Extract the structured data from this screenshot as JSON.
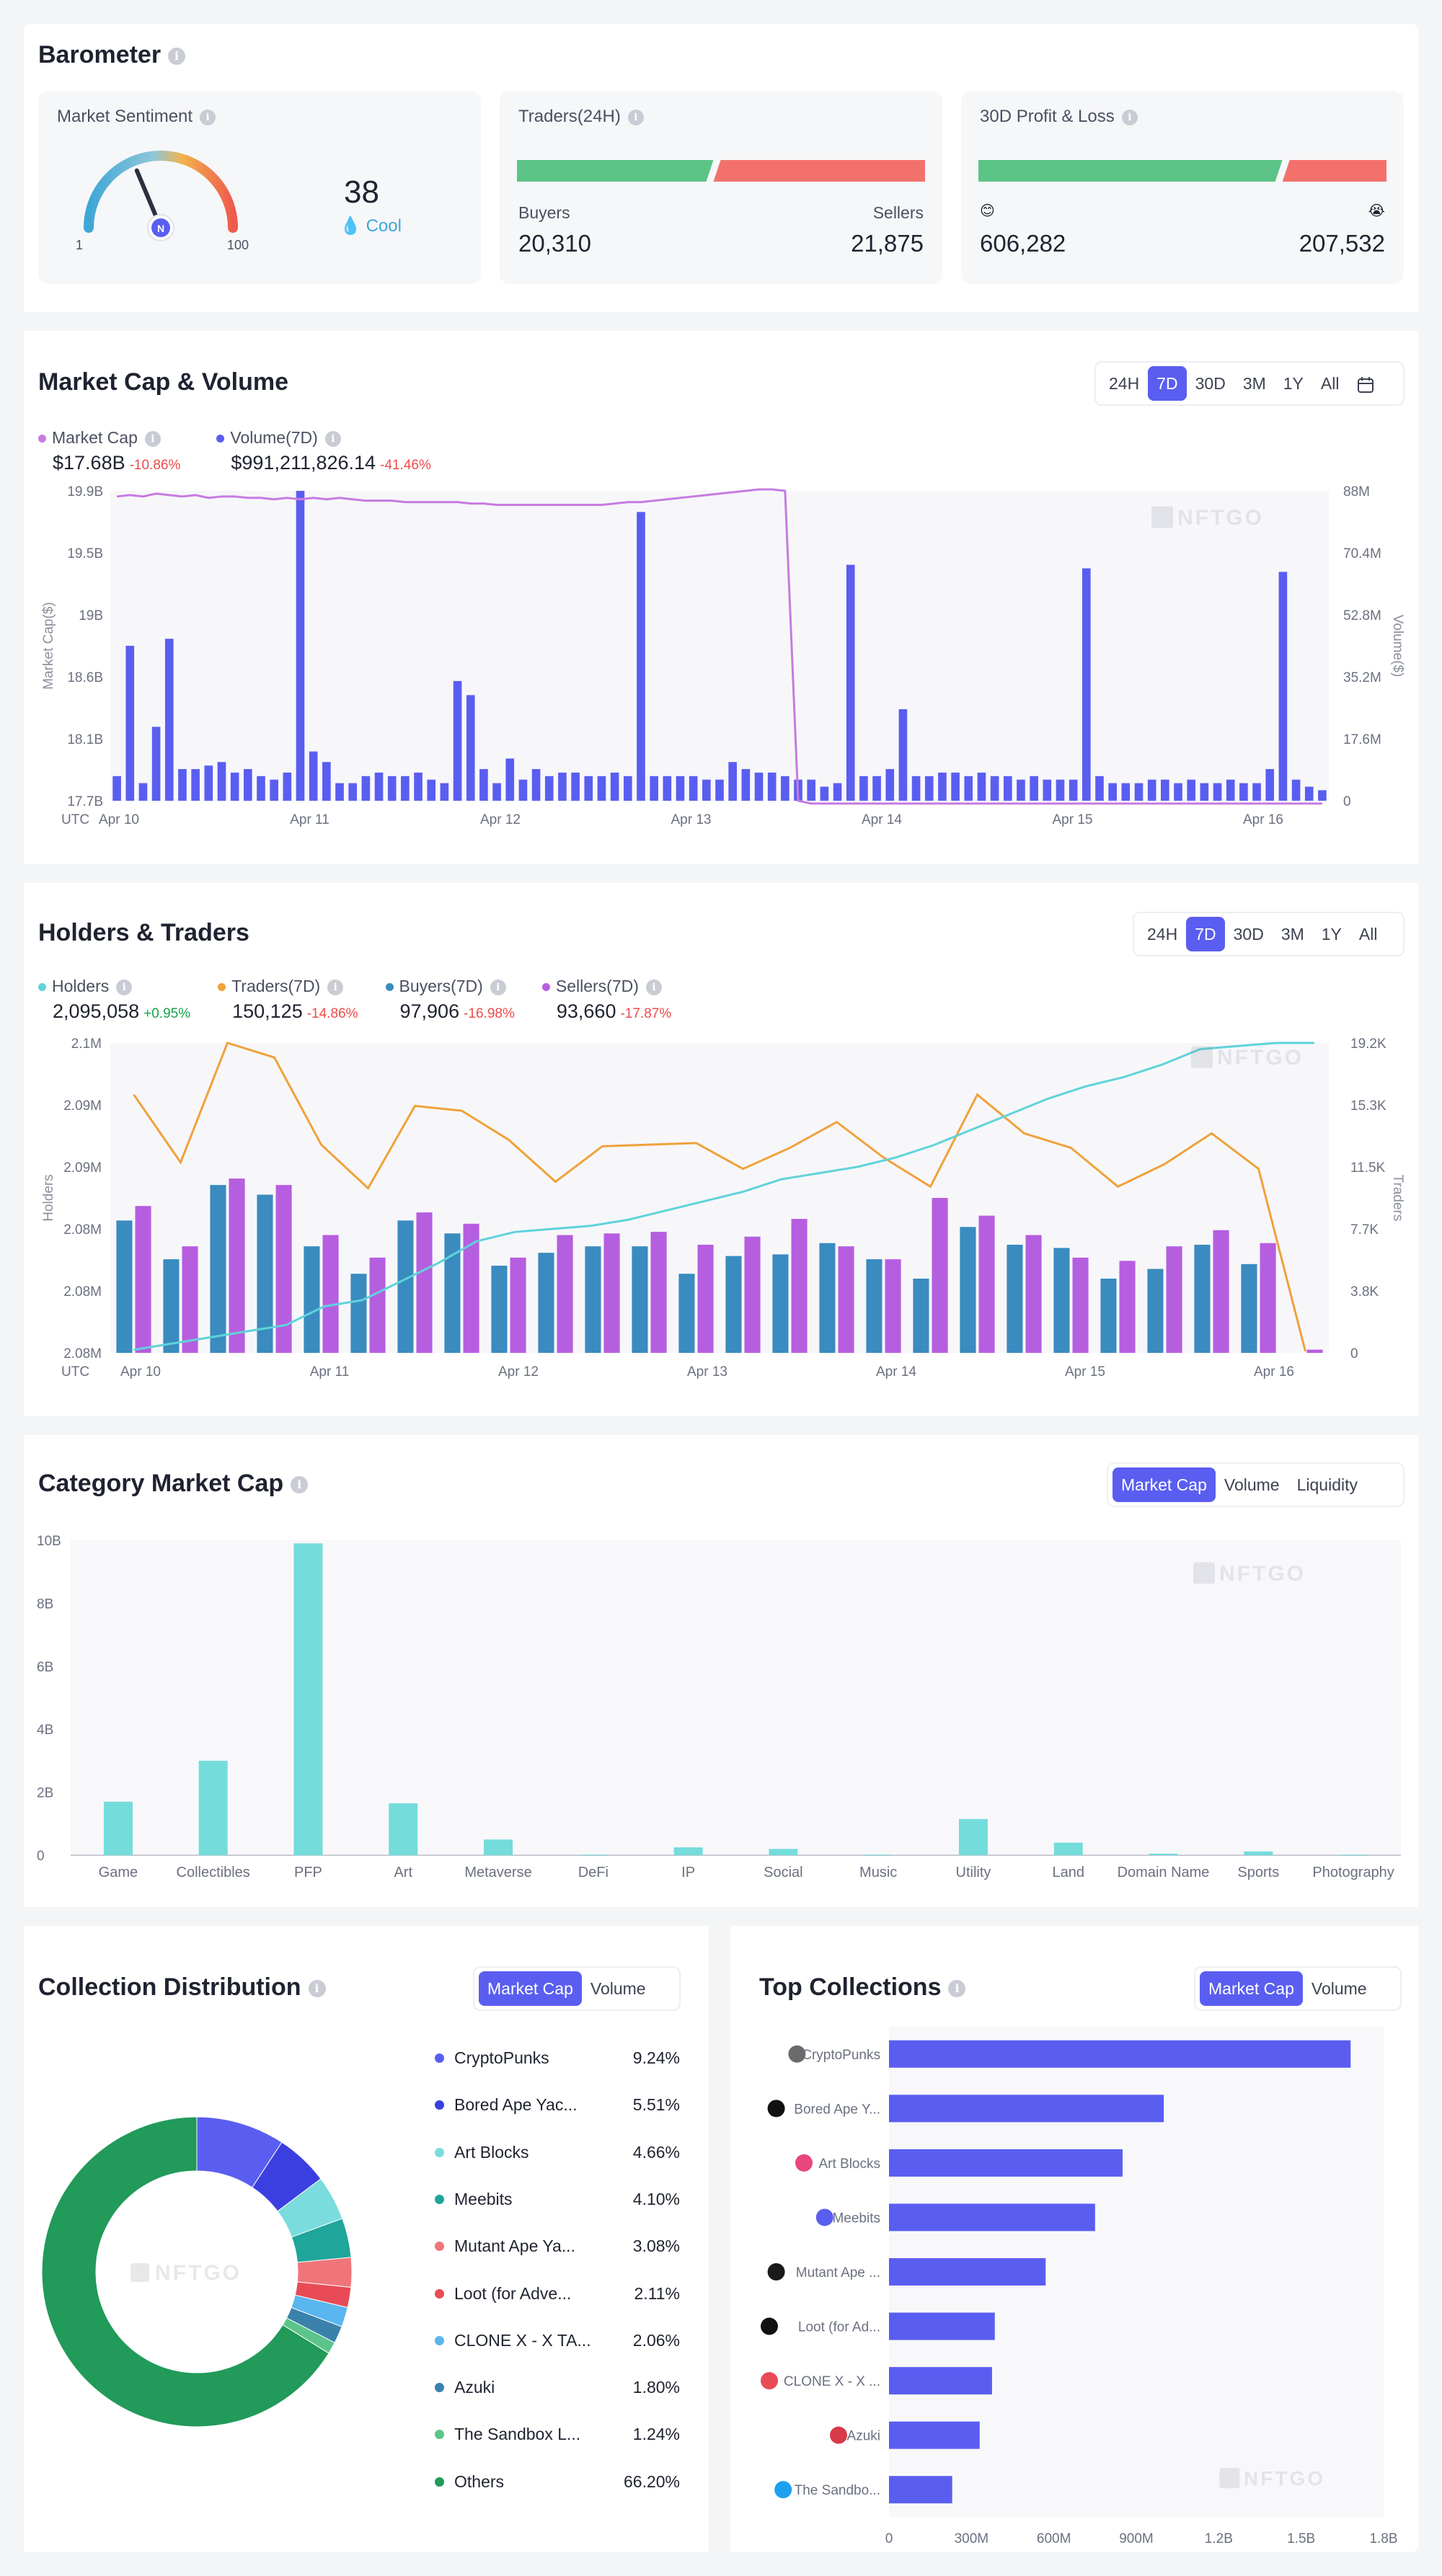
{
  "barometer": {
    "title": "Barometer",
    "sentiment": {
      "label": "Market Sentiment",
      "value": "38",
      "status": "Cool",
      "min": "1",
      "max": "100",
      "gauge_value": 38
    },
    "traders": {
      "label": "Traders(24H)",
      "buyers_label": "Buyers",
      "sellers_label": "Sellers",
      "buyers": "20,310",
      "sellers": "21,875",
      "buyers_share": 0.4815
    },
    "pnl": {
      "label": "30D Profit & Loss",
      "profit_icon": "😊",
      "loss_icon": "😭",
      "profit": "606,282",
      "loss": "207,532",
      "profit_share": 0.745
    },
    "colors": {
      "green": "#5cc487",
      "red": "#f2726b"
    }
  },
  "market_cap": {
    "title": "Market Cap & Volume",
    "tabs": [
      "24H",
      "7D",
      "30D",
      "3M",
      "1Y",
      "All"
    ],
    "active_tab": "7D",
    "calendar_icon": "calendar-icon",
    "legend": [
      {
        "name": "Market Cap",
        "value": "$17.68B",
        "change": "-10.86%",
        "color": "#c77be0"
      },
      {
        "name": "Volume(7D)",
        "value": "$991,211,826.14",
        "change": "-41.46%",
        "color": "#5a5ef0"
      }
    ],
    "watermark": "NFTGO"
  },
  "holders": {
    "title": "Holders & Traders",
    "tabs": [
      "24H",
      "7D",
      "30D",
      "3M",
      "1Y",
      "All"
    ],
    "active_tab": "7D",
    "legend": [
      {
        "name": "Holders",
        "value": "2,095,058",
        "change": "+0.95%",
        "positive": true,
        "color": "#5fd3da"
      },
      {
        "name": "Traders(7D)",
        "value": "150,125",
        "change": "-14.86%",
        "positive": false,
        "color": "#f0a13a"
      },
      {
        "name": "Buyers(7D)",
        "value": "97,906",
        "change": "-16.98%",
        "positive": false,
        "color": "#3a8bbf"
      },
      {
        "name": "Sellers(7D)",
        "value": "93,660",
        "change": "-17.87%",
        "positive": false,
        "color": "#b65ee0"
      }
    ],
    "watermark": "NFTGO"
  },
  "category": {
    "title": "Category Market Cap",
    "tabs": [
      "Market Cap",
      "Volume",
      "Liquidity"
    ],
    "active_tab": "Market Cap",
    "watermark": "NFTGO"
  },
  "distribution": {
    "title": "Collection Distribution",
    "tabs": [
      "Market Cap",
      "Volume"
    ],
    "active_tab": "Market Cap",
    "center_label": "NFTGO",
    "items": [
      {
        "name": "CryptoPunks",
        "pct": "9.24%",
        "value": 9.24,
        "color": "#5a5ef0"
      },
      {
        "name": "Bored Ape Yac...",
        "pct": "5.51%",
        "value": 5.51,
        "color": "#3c3fe0"
      },
      {
        "name": "Art Blocks",
        "pct": "4.66%",
        "value": 4.66,
        "color": "#7adcdc"
      },
      {
        "name": "Meebits",
        "pct": "4.10%",
        "value": 4.1,
        "color": "#1fa59a"
      },
      {
        "name": "Mutant Ape Ya...",
        "pct": "3.08%",
        "value": 3.08,
        "color": "#f0757a"
      },
      {
        "name": "Loot (for Adve...",
        "pct": "2.11%",
        "value": 2.11,
        "color": "#e84b55"
      },
      {
        "name": "CLONE X - X TA...",
        "pct": "2.06%",
        "value": 2.06,
        "color": "#5ab6ee"
      },
      {
        "name": "Azuki",
        "pct": "1.80%",
        "value": 1.8,
        "color": "#3a82ac"
      },
      {
        "name": "The Sandbox L...",
        "pct": "1.24%",
        "value": 1.24,
        "color": "#5cc48a"
      },
      {
        "name": "Others",
        "pct": "66.20%",
        "value": 66.2,
        "color": "#219a5a"
      }
    ]
  },
  "top": {
    "title": "Top Collections",
    "tabs": [
      "Market Cap",
      "Volume"
    ],
    "active_tab": "Market Cap",
    "watermark": "NFTGO"
  },
  "chart_data": [
    {
      "type": "bar",
      "title": "Market Cap & Volume",
      "x_ticks": [
        "Apr 10",
        "Apr 11",
        "Apr 12",
        "Apr 13",
        "Apr 14",
        "Apr 15",
        "Apr 16"
      ],
      "x_prefix": "UTC",
      "ylabel": "Market Cap($)",
      "y2label": "Volume($)",
      "y_ticks": [
        "17.7B",
        "18.1B",
        "18.6B",
        "19B",
        "19.5B",
        "19.9B"
      ],
      "y2_ticks": [
        "0",
        "17.6M",
        "35.2M",
        "52.8M",
        "70.4M",
        "88M"
      ],
      "ylim": [
        17.7,
        19.9
      ],
      "y2lim": [
        0,
        88
      ],
      "series": [
        {
          "name": "Volume(7D)",
          "kind": "bar",
          "axis": "right",
          "unit": "M",
          "values": [
            7,
            44,
            5,
            21,
            46,
            9,
            9,
            10,
            11,
            8,
            9,
            7,
            6,
            8,
            88,
            14,
            11,
            5,
            5,
            7,
            8,
            7,
            7,
            8,
            6,
            5,
            34,
            30,
            9,
            5,
            12,
            6,
            9,
            7,
            8,
            8,
            7,
            7,
            8,
            7,
            82,
            7,
            7,
            7,
            7,
            6,
            6,
            11,
            9,
            8,
            8,
            7,
            6,
            6,
            4,
            5,
            67,
            7,
            7,
            9,
            26,
            7,
            7,
            8,
            8,
            7,
            8,
            7,
            7,
            6,
            7,
            6,
            6,
            6,
            66,
            7,
            5,
            5,
            5,
            6,
            6,
            5,
            6,
            5,
            5,
            6,
            5,
            5,
            9,
            65,
            6,
            4,
            3
          ]
        },
        {
          "name": "Market Cap",
          "kind": "line",
          "axis": "left",
          "unit": "B",
          "values": [
            19.86,
            19.87,
            19.86,
            19.88,
            19.87,
            19.86,
            19.87,
            19.85,
            19.86,
            19.86,
            19.85,
            19.85,
            19.84,
            19.85,
            19.84,
            19.85,
            19.84,
            19.85,
            19.84,
            19.83,
            19.83,
            19.83,
            19.82,
            19.82,
            19.82,
            19.82,
            19.82,
            19.81,
            19.81,
            19.8,
            19.8,
            19.8,
            19.8,
            19.8,
            19.8,
            19.8,
            19.8,
            19.8,
            19.81,
            19.82,
            19.82,
            19.83,
            19.84,
            19.85,
            19.86,
            19.87,
            19.88,
            19.89,
            19.9,
            19.91,
            19.91,
            19.9,
            17.7,
            17.68,
            17.68,
            17.68,
            17.68,
            17.68,
            17.68,
            17.68,
            17.68,
            17.68,
            17.68,
            17.68,
            17.68,
            17.68,
            17.68,
            17.68,
            17.68,
            17.68,
            17.68,
            17.68,
            17.68,
            17.68,
            17.68,
            17.68,
            17.68,
            17.68,
            17.68,
            17.68,
            17.68,
            17.68,
            17.68,
            17.68,
            17.68,
            17.68,
            17.68,
            17.68,
            17.68,
            17.68,
            17.68,
            17.68,
            17.68
          ]
        }
      ]
    },
    {
      "type": "bar",
      "title": "Holders & Traders",
      "x_ticks": [
        "Apr 10",
        "Apr 11",
        "Apr 12",
        "Apr 13",
        "Apr 14",
        "Apr 15",
        "Apr 16"
      ],
      "x_prefix": "UTC",
      "ylabel": "Holders",
      "y2label": "Traders",
      "y_ticks": [
        "2.08M",
        "2.08M",
        "2.08M",
        "2.09M",
        "2.09M",
        "2.1M"
      ],
      "y2_ticks": [
        "0",
        "3.8K",
        "7.7K",
        "11.5K",
        "15.3K",
        "19.2K"
      ],
      "ylim": [
        0,
        19200
      ],
      "series": [
        {
          "name": "Buyers(7D)",
          "kind": "bar",
          "values": [
            8200,
            5800,
            10400,
            9800,
            6600,
            4900,
            8200,
            7400,
            5400,
            6200,
            6600,
            6600,
            4900,
            6000,
            6100,
            6800,
            5800,
            4600,
            7800,
            6700,
            6500,
            4600,
            5200,
            6700,
            5500,
            0
          ]
        },
        {
          "name": "Sellers(7D)",
          "kind": "bar",
          "values": [
            9100,
            6600,
            10800,
            10400,
            7300,
            5900,
            8700,
            8000,
            5900,
            7300,
            7400,
            7500,
            6700,
            7200,
            8300,
            6600,
            5800,
            9600,
            8500,
            7300,
            5900,
            5700,
            6600,
            7600,
            6800,
            200
          ]
        },
        {
          "name": "Traders(7D)",
          "kind": "line",
          "values": [
            16000,
            11800,
            19200,
            18300,
            12900,
            10200,
            15300,
            15000,
            13200,
            10600,
            12800,
            12900,
            13000,
            11400,
            12700,
            14300,
            12100,
            10300,
            16000,
            13600,
            12700,
            10300,
            11700,
            13600,
            11400,
            100
          ]
        },
        {
          "name": "Holders",
          "kind": "line",
          "scale": "normalized",
          "values": [
            0.01,
            0.03,
            0.05,
            0.07,
            0.09,
            0.15,
            0.17,
            0.23,
            0.29,
            0.36,
            0.39,
            0.4,
            0.41,
            0.43,
            0.46,
            0.49,
            0.52,
            0.56,
            0.58,
            0.6,
            0.63,
            0.67,
            0.72,
            0.77,
            0.82,
            0.86,
            0.89,
            0.93,
            0.98,
            0.99,
            1.0,
            1.0
          ]
        }
      ]
    },
    {
      "type": "bar",
      "title": "Category Market Cap",
      "categories": [
        "Game",
        "Collectibles",
        "PFP",
        "Art",
        "Metaverse",
        "DeFi",
        "IP",
        "Social",
        "Music",
        "Utility",
        "Land",
        "Domain Name",
        "Sports",
        "Photography"
      ],
      "values": [
        1.7,
        3.0,
        9.9,
        1.65,
        0.5,
        0.02,
        0.25,
        0.2,
        0.02,
        1.15,
        0.4,
        0.05,
        0.12,
        0.02
      ],
      "unit": "B",
      "y_ticks": [
        "0",
        "2B",
        "4B",
        "6B",
        "8B",
        "10B"
      ],
      "ylim": [
        0,
        10
      ],
      "color": "#74dcdb"
    },
    {
      "type": "pie",
      "title": "Collection Distribution",
      "labels": [
        "CryptoPunks",
        "Bored Ape Yac...",
        "Art Blocks",
        "Meebits",
        "Mutant Ape Ya...",
        "Loot (for Adve...",
        "CLONE X - X TA...",
        "Azuki",
        "The Sandbox L...",
        "Others"
      ],
      "values": [
        9.24,
        5.51,
        4.66,
        4.1,
        3.08,
        2.11,
        2.06,
        1.8,
        1.24,
        66.2
      ]
    },
    {
      "type": "bar",
      "orientation": "horizontal",
      "title": "Top Collections",
      "categories": [
        "CryptoPunks",
        "Bored Ape Y...",
        "Art Blocks",
        "Meebits",
        "Mutant Ape ...",
        "Loot (for Ad...",
        "CLONE X - X ...",
        "Azuki",
        "The Sandbo..."
      ],
      "values": [
        1680,
        1000,
        850,
        750,
        570,
        385,
        375,
        330,
        230
      ],
      "unit": "M",
      "x_ticks": [
        "0",
        "300M",
        "600M",
        "900M",
        "1.2B",
        "1.5B",
        "1.8B"
      ],
      "xlim": [
        0,
        1800
      ],
      "icon_colors": [
        "#6b6b6b",
        "#111111",
        "#e8467c",
        "#5a5ef0",
        "#1a1a1a",
        "#111111",
        "#e84b55",
        "#d83a4a",
        "#1ea0f0"
      ],
      "color": "#5a5ef0"
    }
  ]
}
